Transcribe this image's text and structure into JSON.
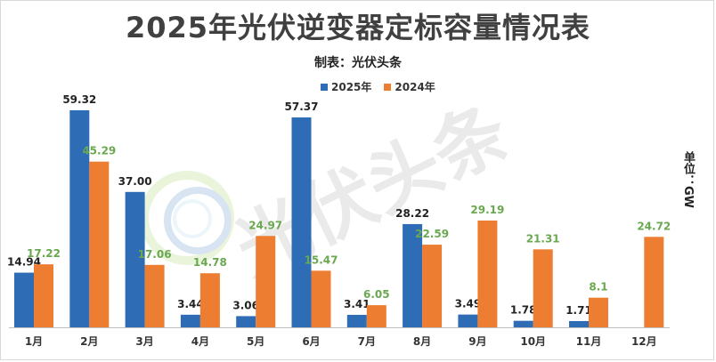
{
  "title": "2025年光伏逆变器定标容量情况表",
  "subtitle": "制表：光伏头条",
  "unit_label": "单位：GW",
  "watermark_text": "光伏头条",
  "colors": {
    "series_2025": "#2e6db5",
    "series_2024": "#ed7d31",
    "label_2025": "#222222",
    "label_2024": "#6aa84f"
  },
  "chart_data": {
    "type": "bar",
    "title": "2025年光伏逆变器定标容量情况表",
    "categories": [
      "1月",
      "2月",
      "3月",
      "4月",
      "5月",
      "6月",
      "7月",
      "8月",
      "9月",
      "10月",
      "11月",
      "12月"
    ],
    "series": [
      {
        "name": "2025年",
        "values": [
          14.94,
          59.32,
          37.0,
          3.44,
          3.06,
          57.37,
          3.41,
          28.22,
          3.49,
          1.78,
          1.71,
          null
        ],
        "labels": [
          "14.94",
          "59.32",
          "37.00",
          "3.44",
          "3.06",
          "57.37",
          "3.41",
          "28.22",
          "3.49",
          "1.78",
          "1.71",
          ""
        ]
      },
      {
        "name": "2024年",
        "values": [
          17.22,
          45.29,
          17.06,
          14.78,
          24.97,
          15.47,
          6.05,
          22.59,
          29.19,
          21.31,
          8.1,
          24.72
        ],
        "labels": [
          "17.22",
          "45.29",
          "17.06",
          "14.78",
          "24.97",
          "15.47",
          "6.05",
          "22.59",
          "29.19",
          "21.31",
          "8.1",
          "24.72"
        ]
      }
    ],
    "ylim": [
      0,
      60
    ],
    "grid": false,
    "legend_position": "top-center"
  }
}
